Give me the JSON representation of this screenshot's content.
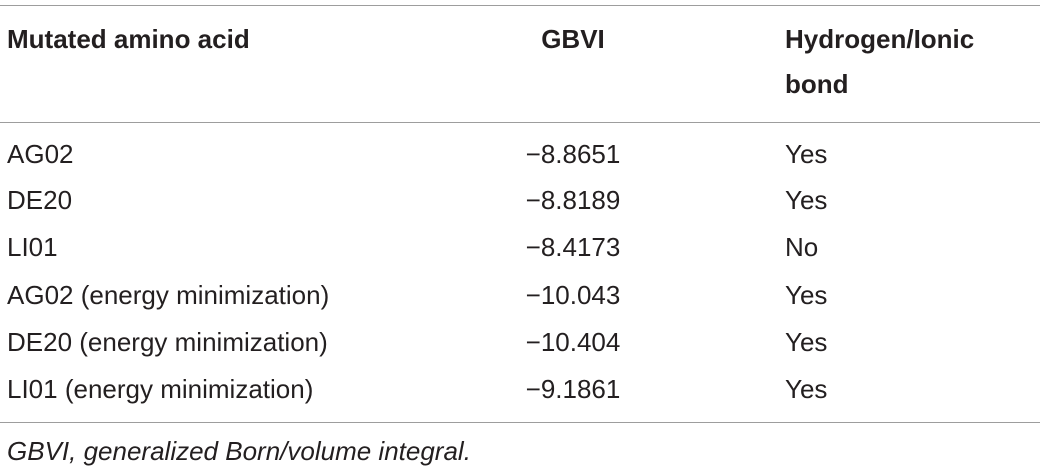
{
  "table": {
    "headers": {
      "col1": "Mutated amino acid",
      "col2": "GBVI",
      "col3": "Hydrogen/Ionic bond"
    },
    "rows": [
      {
        "amino_acid": "AG02",
        "gbvi": "−8.8651",
        "bond": "Yes"
      },
      {
        "amino_acid": "DE20",
        "gbvi": "−8.8189",
        "bond": "Yes"
      },
      {
        "amino_acid": "LI01",
        "gbvi": "−8.4173",
        "bond": "No"
      },
      {
        "amino_acid": "AG02 (energy minimization)",
        "gbvi": "−10.043",
        "bond": "Yes"
      },
      {
        "amino_acid": "DE20 (energy minimization)",
        "gbvi": "−10.404",
        "bond": "Yes"
      },
      {
        "amino_acid": "LI01 (energy minimization)",
        "gbvi": "−9.1861",
        "bond": "Yes"
      }
    ]
  },
  "footnote": "GBVI, generalized Born/volume integral."
}
